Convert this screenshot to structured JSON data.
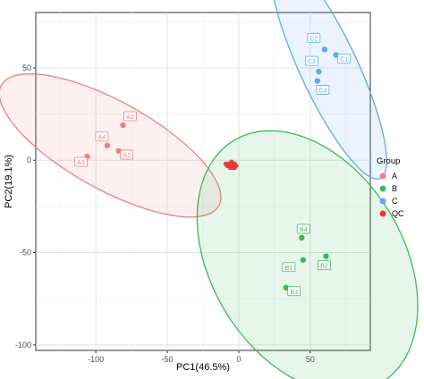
{
  "chart_data": {
    "type": "scatter",
    "title": "",
    "xlabel": "PC1(46.5%)",
    "ylabel": "PC2(19.1%)",
    "xlim": [
      -142,
      92
    ],
    "ylim": [
      -103,
      80
    ],
    "x_ticks": [
      -100,
      -50,
      0,
      50
    ],
    "y_ticks": [
      -100,
      -50,
      0,
      50
    ],
    "x_tick_labels": [
      "-100",
      "-50",
      "0",
      "50"
    ],
    "y_tick_labels": [
      "-100",
      "-50",
      "0",
      "50"
    ],
    "grid": true,
    "legend": {
      "title": "Group",
      "position": "right"
    },
    "series": [
      {
        "name": "A",
        "color": "#F08080",
        "points": [
          {
            "label": "A1",
            "x": -81,
            "y": 19
          },
          {
            "label": "A2",
            "x": -84,
            "y": 5
          },
          {
            "label": "A3",
            "x": -106,
            "y": 2
          },
          {
            "label": "A4",
            "x": -92,
            "y": 8
          }
        ],
        "ellipse": {
          "cx": -90,
          "cy": 8,
          "rx": 83,
          "ry": 25,
          "angle_deg": -22
        }
      },
      {
        "name": "B",
        "color": "#3CB95A",
        "points": [
          {
            "label": "B1",
            "x": 45,
            "y": -54
          },
          {
            "label": "B2",
            "x": 61,
            "y": -52
          },
          {
            "label": "B3",
            "x": 33,
            "y": -69
          },
          {
            "label": "B4",
            "x": 44,
            "y": -42
          }
        ],
        "ellipse": {
          "cx": 48,
          "cy": -55,
          "rx": 86,
          "ry": 60,
          "angle_deg": -38
        }
      },
      {
        "name": "C",
        "color": "#5DA8F5",
        "points": [
          {
            "label": "C1",
            "x": 68,
            "y": 57
          },
          {
            "label": "C2",
            "x": 60,
            "y": 60
          },
          {
            "label": "C3",
            "x": 56,
            "y": 48
          },
          {
            "label": "C4",
            "x": 55,
            "y": 43
          }
        ],
        "ellipse": {
          "cx": 63,
          "cy": 50,
          "rx": 70,
          "ry": 19,
          "angle_deg": -58
        }
      },
      {
        "name": "QC",
        "color": "#E53935",
        "points": [
          {
            "x": -7,
            "y": -2
          },
          {
            "x": -6,
            "y": -3
          },
          {
            "x": -5,
            "y": -2
          },
          {
            "x": -4,
            "y": -3
          },
          {
            "x": -3,
            "y": -2
          },
          {
            "x": -2,
            "y": -3
          },
          {
            "x": -8,
            "y": -3
          },
          {
            "x": -9,
            "y": -2
          },
          {
            "x": -6,
            "y": -4
          },
          {
            "x": -4,
            "y": -4
          },
          {
            "x": -5,
            "y": -1
          },
          {
            "x": -3,
            "y": -4
          }
        ]
      }
    ]
  }
}
